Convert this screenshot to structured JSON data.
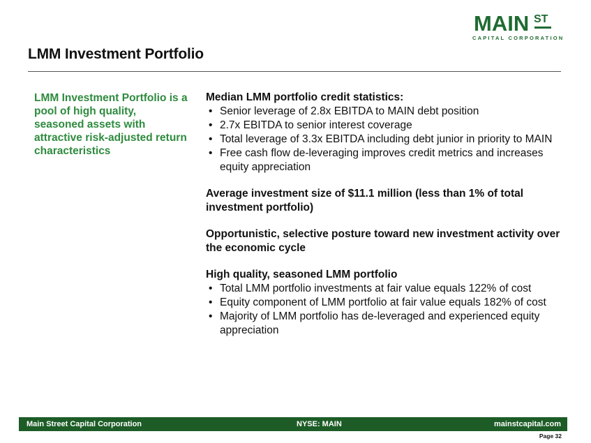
{
  "logo": {
    "main": "MAIN",
    "st": "ST",
    "subtitle": "CAPITAL CORPORATION",
    "color": "#1f6b32"
  },
  "title": "LMM Investment Portfolio",
  "left_text": "LMM Investment Portfolio is a pool of high quality, seasoned assets with attractive risk-adjusted return characteristics",
  "sections": [
    {
      "heading": "Median LMM portfolio credit statistics:",
      "bullets": [
        "Senior leverage of 2.8x EBITDA to MAIN debt position",
        "2.7x EBITDA to senior interest coverage",
        "Total leverage of 3.3x EBITDA including debt junior in priority to MAIN",
        "Free cash flow de-leveraging improves credit metrics and increases equity appreciation"
      ]
    },
    {
      "heading": "Average investment size of $11.1 million (less than 1% of total investment portfolio)",
      "bullets": []
    },
    {
      "heading": "Opportunistic, selective posture toward new investment activity over the economic cycle",
      "bullets": []
    },
    {
      "heading": "High quality, seasoned LMM portfolio",
      "bullets": [
        "Total LMM portfolio investments at fair value equals 122% of cost",
        "Equity component of LMM portfolio at fair value equals 182% of cost",
        "Majority of LMM portfolio has de-leveraged and experienced equity appreciation"
      ]
    }
  ],
  "footer": {
    "left": "Main Street Capital Corporation",
    "center": "NYSE: MAIN",
    "right": "mainstcapital.com",
    "color": "#1d5c26"
  },
  "page_label": "Page  32",
  "accent_green": "#2e8b3e"
}
